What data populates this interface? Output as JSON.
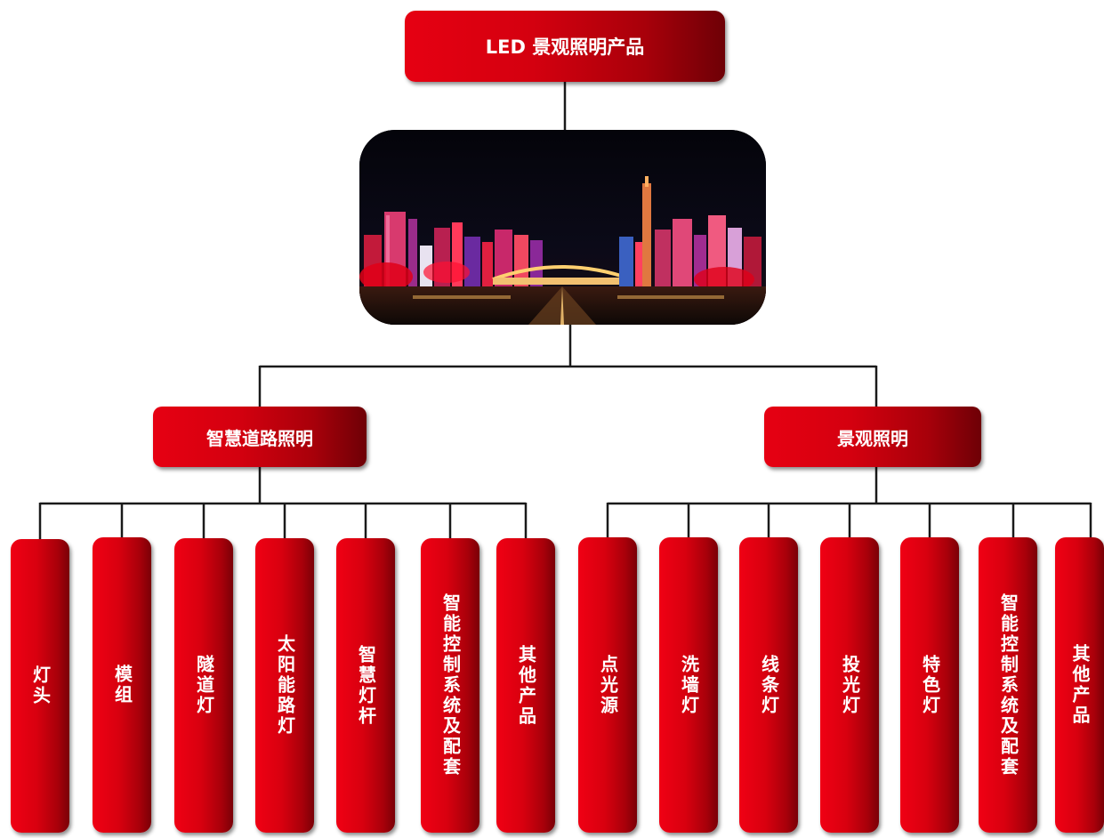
{
  "root": {
    "label": "LED 景观照明产品"
  },
  "photo": {
    "icon": "city-night-skyline-image"
  },
  "categories": {
    "left": {
      "label": "智慧道路照明"
    },
    "right": {
      "label": "景观照明"
    }
  },
  "left_items": [
    {
      "label": "灯头"
    },
    {
      "label": "模组"
    },
    {
      "label": "隧道灯"
    },
    {
      "label": "太阳能路灯"
    },
    {
      "label": "智慧灯杆"
    },
    {
      "label": "智能控制系统及配套"
    },
    {
      "label": "其他产品"
    }
  ],
  "right_items": [
    {
      "label": "点光源"
    },
    {
      "label": "洗墙灯"
    },
    {
      "label": "线条灯"
    },
    {
      "label": "投光灯"
    },
    {
      "label": "特色灯"
    },
    {
      "label": "智能控制系统及配套"
    },
    {
      "label": "其他产品"
    }
  ],
  "colors": {
    "box_light": "#e60012",
    "box_dark": "#6e0006",
    "line": "#1a1a1a"
  }
}
